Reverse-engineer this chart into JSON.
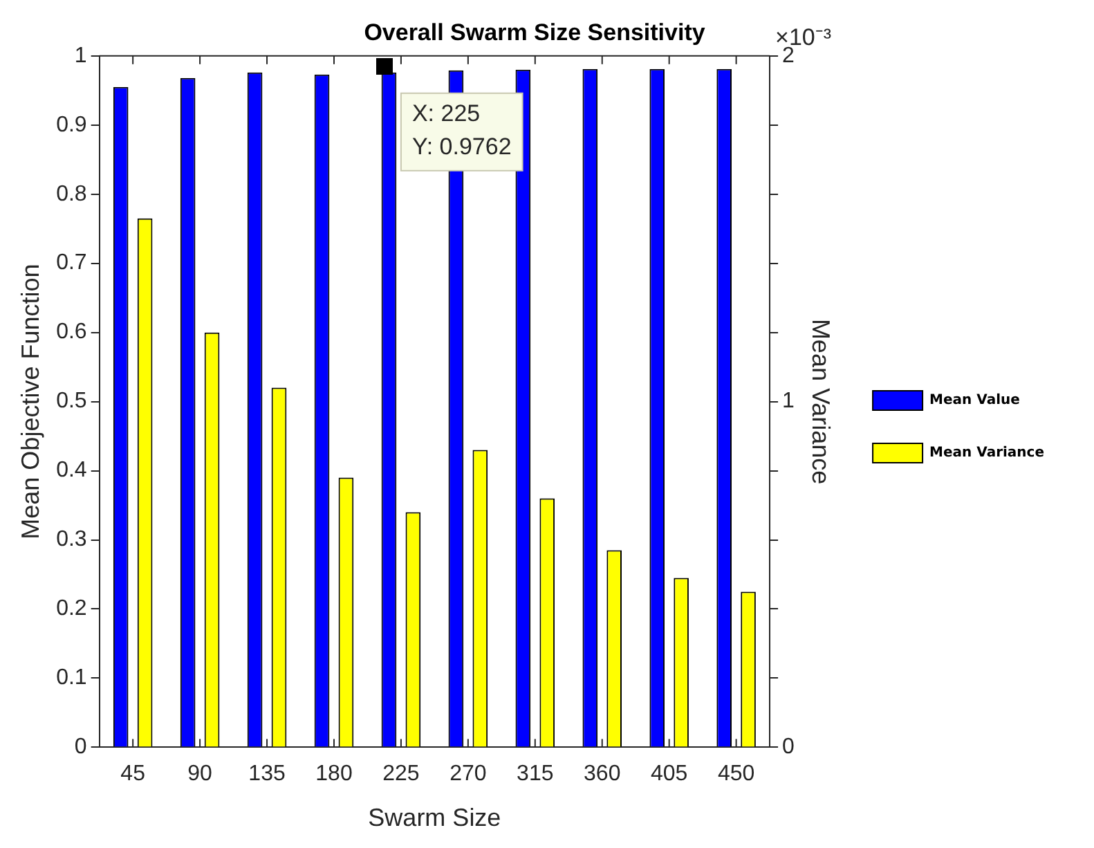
{
  "chart_data": {
    "type": "bar",
    "title": "Overall Swarm Size Sensitivity",
    "xlabel": "Swarm Size",
    "ylabel": "Mean Objective Function",
    "y2label": "Mean Variance",
    "categories": [
      "45",
      "90",
      "135",
      "180",
      "225",
      "270",
      "315",
      "360",
      "405",
      "450"
    ],
    "series": [
      {
        "name": "Mean Value",
        "color": "#0000ff",
        "values": [
          0.955,
          0.968,
          0.976,
          0.973,
          0.976,
          0.979,
          0.98,
          0.981,
          0.981,
          0.981
        ]
      },
      {
        "name": "Mean Variance",
        "color": "#ffff00",
        "axis": "y2",
        "values": [
          1.53,
          1.2,
          1.04,
          0.78,
          0.68,
          0.86,
          0.72,
          0.57,
          0.49,
          0.45
        ]
      }
    ],
    "ylim": [
      0,
      1
    ],
    "yticks": [
      0,
      0.1,
      0.2,
      0.3,
      0.4,
      0.5,
      0.6,
      0.7,
      0.8,
      0.9,
      1
    ],
    "y2lim": [
      0,
      2
    ],
    "y2ticks": [
      0,
      {
        "value": 0.2,
        "label": null
      },
      {
        "value": 0.4,
        "label": null
      },
      {
        "value": 0.6,
        "label": null
      },
      {
        "value": 0.8,
        "label": null
      },
      1,
      {
        "value": 1.2,
        "label": null
      },
      {
        "value": 1.4,
        "label": null
      },
      {
        "value": 1.6,
        "label": null
      },
      {
        "value": 1.8,
        "label": null
      },
      2
    ],
    "annotations": [
      "×10⁻³",
      "X: 225\nY: 0.9762"
    ],
    "legend": "right",
    "grid": false
  }
}
